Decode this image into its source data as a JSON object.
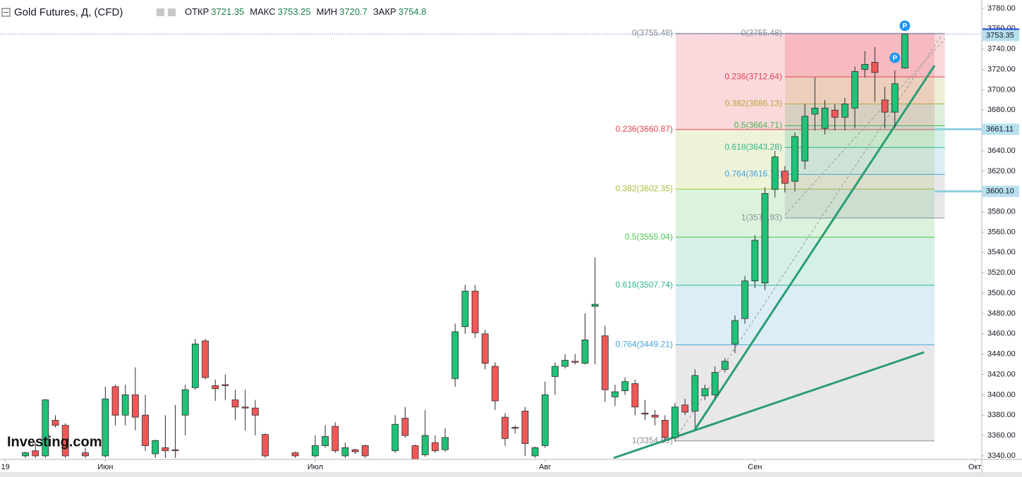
{
  "chart_data": {
    "type": "candlestick",
    "title": "Gold Futures, Д, (CFD)",
    "ohlc": [
      {
        "label": "ОТКР",
        "value": 3721.35
      },
      {
        "label": "МАКС",
        "value": 3753.25
      },
      {
        "label": "МИН",
        "value": 3720.7
      },
      {
        "label": "ЗАКР",
        "value": 3754.8
      }
    ],
    "logo": "Investing.com",
    "x": [
      0,
      1,
      2,
      3,
      4,
      6,
      8,
      9,
      10,
      11,
      12,
      13,
      14,
      15,
      16,
      17,
      18,
      19,
      20,
      21,
      22,
      23,
      24,
      27,
      29,
      30,
      31,
      32,
      33,
      34,
      37,
      38,
      39,
      40,
      41,
      42,
      43,
      44,
      45,
      46,
      47,
      48,
      49,
      50,
      51,
      52,
      53,
      54,
      55,
      56,
      57,
      58,
      59,
      60,
      61,
      62,
      63,
      64,
      65,
      66,
      67,
      68,
      69,
      70,
      71,
      72,
      73,
      74,
      75,
      76,
      77,
      78,
      79,
      80,
      81,
      82,
      83,
      84,
      85,
      86,
      87,
      88
    ],
    "open": [
      3340,
      3345,
      3340,
      3375,
      3370,
      3343,
      3340,
      3408,
      3380,
      3400,
      3380,
      3342,
      3348,
      3346,
      3380,
      3407,
      3453,
      3409,
      3410,
      3395,
      3388,
      3387,
      3361,
      3343,
      3340,
      3350,
      3369,
      3340,
      3346,
      3350,
      3345,
      3377,
      3350,
      3341,
      3353,
      3346,
      3416,
      3467,
      3502,
      3460,
      3428,
      3378,
      3368,
      3384,
      3340,
      3350,
      3418,
      3428,
      3433,
      3431,
      3487,
      3458,
      3398,
      3404,
      3411,
      3382,
      3380,
      3375,
      3358,
      3390,
      3384,
      3399,
      3400,
      3425,
      3450,
      3475,
      3512,
      3510,
      3602,
      3620,
      3610,
      3630,
      3676,
      3662,
      3680,
      3673,
      3682,
      3720,
      3727,
      3690,
      3678,
      3721.35
    ],
    "high": [
      3344,
      3353,
      3396,
      3380,
      3372,
      3348,
      3408,
      3410,
      3410,
      3427,
      3400,
      3356,
      3380,
      3390,
      3410,
      3455,
      3455,
      3415,
      3420,
      3405,
      3405,
      3395,
      3362,
      3344,
      3360,
      3370,
      3373,
      3353,
      3347,
      3351,
      3380,
      3388,
      3351,
      3385,
      3360,
      3367,
      3470,
      3508,
      3508,
      3464,
      3432,
      3382,
      3370,
      3388,
      3349,
      3413,
      3432,
      3440,
      3440,
      3480,
      3535,
      3468,
      3410,
      3417,
      3415,
      3395,
      3385,
      3380,
      3392,
      3396,
      3425,
      3410,
      3428,
      3436,
      3478,
      3517,
      3557,
      3604,
      3640,
      3625,
      3658,
      3686,
      3712,
      3690,
      3686,
      3692,
      3723,
      3738,
      3742,
      3703,
      3719,
      3753.25
    ],
    "low": [
      3338,
      3338,
      3338,
      3368,
      3338,
      3338,
      3338,
      3370,
      3370,
      3365,
      3345,
      3338,
      3338,
      3338,
      3360,
      3405,
      3415,
      3394,
      3395,
      3375,
      3365,
      3360,
      3338,
      3338,
      3338,
      3348,
      3343,
      3338,
      3342,
      3338,
      3343,
      3358,
      3336,
      3339,
      3343,
      3344,
      3408,
      3460,
      3456,
      3425,
      3385,
      3350,
      3362,
      3340,
      3338,
      3348,
      3400,
      3426,
      3430,
      3430,
      3430,
      3393,
      3389,
      3400,
      3380,
      3375,
      3370,
      3355,
      3354,
      3380,
      3368,
      3395,
      3396,
      3422,
      3441,
      3470,
      3505,
      3503,
      3594,
      3599,
      3600,
      3622,
      3660,
      3656,
      3660,
      3660,
      3662,
      3712,
      3688,
      3662,
      3663,
      3720.7
    ],
    "close": [
      3343,
      3340,
      3395,
      3370,
      3340,
      3340,
      3396,
      3380,
      3400,
      3378,
      3350,
      3355,
      3345,
      3345,
      3405,
      3450,
      3417,
      3406,
      3409,
      3388,
      3387,
      3380,
      3340,
      3340,
      3350,
      3359,
      3345,
      3348,
      3344,
      3340,
      3371,
      3360,
      3336,
      3360,
      3345,
      3358,
      3462,
      3502,
      3461,
      3431,
      3394,
      3357,
      3367,
      3352,
      3348,
      3400,
      3428,
      3434,
      3432,
      3454,
      3489,
      3405,
      3403,
      3413,
      3388,
      3381,
      3378,
      3358,
      3388,
      3383,
      3419,
      3406,
      3422,
      3433,
      3473,
      3512,
      3552,
      3598,
      3634,
      3608,
      3654,
      3674,
      3682,
      3682,
      3673,
      3686,
      3718,
      3725,
      3717,
      3678,
      3706,
      3754.8
    ],
    "up_color": "#1fc276",
    "down_color": "#f05858",
    "xlim": [
      -2.54,
      95.7
    ],
    "xticks": [
      {
        "value": -2,
        "label": "19"
      },
      {
        "value": 8,
        "label": "Июн"
      },
      {
        "value": 29,
        "label": "Июл"
      },
      {
        "value": 52,
        "label": "Авг"
      },
      {
        "value": 73,
        "label": "Сен"
      },
      {
        "value": 95,
        "label": "Окт"
      }
    ],
    "ylim": [
      3336.5,
      3788.3
    ],
    "yticks": [
      {
        "value": 3340,
        "label": "3340.00"
      },
      {
        "value": 3360,
        "label": "3360.00"
      },
      {
        "value": 3380,
        "label": "3380.00"
      },
      {
        "value": 3400,
        "label": "3400.00"
      },
      {
        "value": 3420,
        "label": "3420.00"
      },
      {
        "value": 3440,
        "label": "3440.00"
      },
      {
        "value": 3460,
        "label": "3460.00"
      },
      {
        "value": 3480,
        "label": "3480.00"
      },
      {
        "value": 3500,
        "label": "3500.00"
      },
      {
        "value": 3520,
        "label": "3520.00"
      },
      {
        "value": 3540,
        "label": "3540.00"
      },
      {
        "value": 3560,
        "label": "3560.00"
      },
      {
        "value": 3580,
        "label": "3580.00"
      },
      {
        "value": 3600,
        "label": "3600.00"
      },
      {
        "value": 3620,
        "label": "3620.00"
      },
      {
        "value": 3640,
        "label": "3640.00"
      },
      {
        "value": 3660,
        "label": "3660.00"
      },
      {
        "value": 3680,
        "label": "3680.00"
      },
      {
        "value": 3700,
        "label": "3700.00"
      },
      {
        "value": 3720,
        "label": "3720.00"
      },
      {
        "value": 3740,
        "label": "3740.00"
      },
      {
        "value": 3760,
        "label": "3760.00"
      },
      {
        "value": 3780,
        "label": "3780.00"
      }
    ],
    "grid": false,
    "fibs": [
      {
        "x": [
          65.07,
          90.97
        ],
        "levels": [
          {
            "value": 3755.48,
            "label": "0(3755.48)",
            "color": "#8a8e99"
          },
          {
            "value": 3660.87,
            "label": "0.236(3660.87)",
            "color": "#e84350"
          },
          {
            "value": 3602.35,
            "label": "0.382(3602.35)",
            "color": "#a8c23e"
          },
          {
            "value": 3555.04,
            "label": "0.5(3555.04)",
            "color": "#4cc44e"
          },
          {
            "value": 3507.74,
            "label": "0.618(3507.74)",
            "color": "#2fb58c"
          },
          {
            "value": 3449.21,
            "label": "0.764(3449.21)",
            "color": "#4aa3d8"
          },
          {
            "value": 3354.69,
            "label": "1(3354.69)",
            "color": "#8a8e99"
          }
        ]
      },
      {
        "x": [
          76.0,
          92.0
        ],
        "levels": [
          {
            "value": 3755.48,
            "label": "0(3755.48)",
            "color": "#8a8e99"
          },
          {
            "value": 3712.64,
            "label": "0.236(3712.64)",
            "color": "#e84350"
          },
          {
            "value": 3686.13,
            "label": "0.382(3686.13)",
            "color": "#b0a93a"
          },
          {
            "value": 3664.71,
            "label": "0.5(3664.71)",
            "color": "#4caf50"
          },
          {
            "value": 3643.28,
            "label": "0.618(3643.28)",
            "color": "#2fb58c"
          },
          {
            "value": 3616.78,
            "label": "0.764(3616.78)",
            "color": "#4aa3d8"
          },
          {
            "value": 3573.93,
            "label": "1(3573.93)",
            "color": "#8a8e99"
          }
        ]
      }
    ],
    "price_labels": [
      {
        "value": 3754.8,
        "label": "3754.80",
        "color": "#1e4fd8"
      },
      {
        "value": 3753.35,
        "label": "3753.35",
        "color": "#b7e0ef"
      },
      {
        "value": 3661.11,
        "label": "3661.11",
        "color": "#b7e0ef"
      },
      {
        "value": 3600.1,
        "label": "3600.10",
        "color": "#b7e0ef"
      }
    ],
    "markers": [
      {
        "label": "P"
      },
      {
        "label": "P"
      }
    ]
  }
}
